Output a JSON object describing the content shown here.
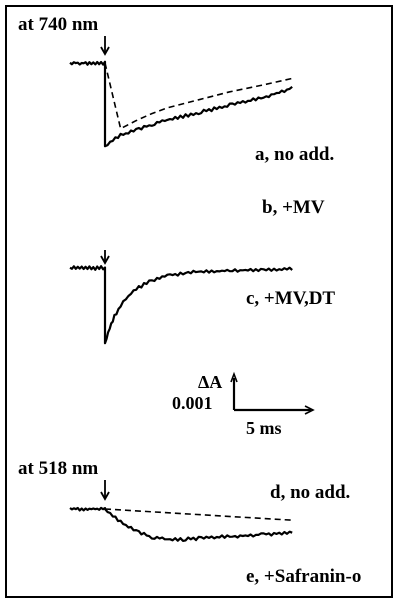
{
  "chart_data": {
    "type": "line",
    "title": "",
    "colors": {
      "trace": "#000000",
      "background": "#ffffff"
    },
    "panels": [
      {
        "wavelength_label": "at 740 nm",
        "flash_marker": "arrow",
        "traces": [
          {
            "name": "a, no add.",
            "style": "dashed",
            "t_ms": [
              0,
              1,
              2,
              3,
              4,
              6,
              8,
              10,
              12
            ],
            "dA": [
              0,
              -0.00205,
              -0.0018,
              -0.00158,
              -0.0014,
              -0.00115,
              -0.0009,
              -0.0007,
              -0.00048
            ]
          },
          {
            "name": "b, +MV",
            "style": "solid",
            "pre_flash_dA": 0,
            "t_ms": [
              0,
              0.5,
              1,
              2,
              3,
              4,
              6,
              8,
              10,
              12
            ],
            "dA": [
              -0.0026,
              -0.0024,
              -0.00225,
              -0.0021,
              -0.00192,
              -0.00178,
              -0.00155,
              -0.00132,
              -0.0011,
              -0.00078
            ]
          },
          {
            "name": "c, +MV,DT",
            "style": "solid",
            "pre_flash_dA": 0,
            "t_ms": [
              0,
              0.3,
              0.6,
              1,
              1.5,
              2,
              3,
              4,
              5,
              6,
              8,
              10,
              12
            ],
            "dA": [
              -0.00235,
              -0.0019,
              -0.00152,
              -0.00118,
              -0.00088,
              -0.00066,
              -0.00038,
              -0.00024,
              -0.00016,
              -0.00012,
              -8e-05,
              -5e-05,
              -4e-05
            ]
          }
        ]
      },
      {
        "wavelength_label": "at 518 nm",
        "flash_marker": "arrow",
        "traces": [
          {
            "name": "d, no add.",
            "style": "dashed",
            "t_ms": [
              0,
              12
            ],
            "dA": [
              0,
              -0.00035
            ]
          },
          {
            "name": "e, +Safranin-o",
            "style": "solid",
            "pre_flash_dA": 0,
            "t_ms": [
              0,
              0.5,
              1,
              2,
              3,
              4,
              5,
              6,
              8,
              10,
              12
            ],
            "dA": [
              0,
              -0.0002,
              -0.0004,
              -0.0007,
              -0.00088,
              -0.00095,
              -0.00095,
              -0.00092,
              -0.00086,
              -0.0008,
              -0.00074
            ]
          }
        ]
      }
    ],
    "scale_bar": {
      "y_label": "ΔA",
      "y_value_label": "0.001",
      "y_value": 0.001,
      "x_label": "5 ms",
      "x_value": 5
    }
  }
}
